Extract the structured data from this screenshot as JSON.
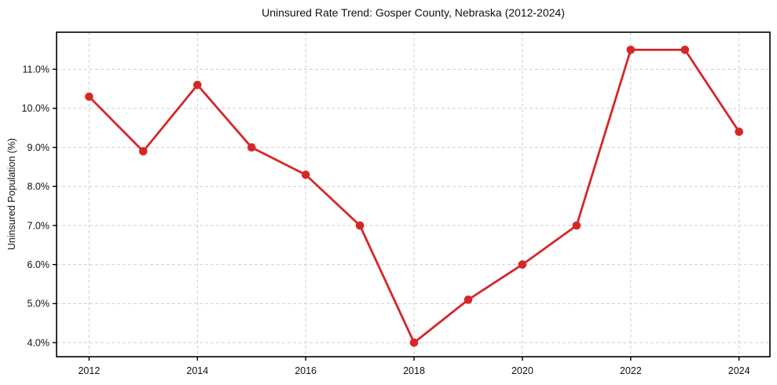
{
  "chart_data": {
    "type": "line",
    "title": "Uninsured Rate Trend: Gosper County, Nebraska (2012-2024)",
    "xlabel": "",
    "ylabel": "Uninsured Population (%)",
    "x": [
      2012,
      2013,
      2014,
      2015,
      2016,
      2017,
      2018,
      2019,
      2020,
      2021,
      2022,
      2023,
      2024
    ],
    "values": [
      10.3,
      8.9,
      10.6,
      9.0,
      8.3,
      7.0,
      4.0,
      5.1,
      6.0,
      7.0,
      11.5,
      11.5,
      9.4
    ],
    "unit": "%",
    "x_ticks": [
      2012,
      2014,
      2016,
      2018,
      2020,
      2022,
      2024
    ],
    "x_tick_labels": [
      "2012",
      "2014",
      "2016",
      "2018",
      "2020",
      "2022",
      "2024"
    ],
    "y_ticks": [
      4.0,
      5.0,
      6.0,
      7.0,
      8.0,
      9.0,
      10.0,
      11.0
    ],
    "y_tick_labels": [
      "4.0%",
      "5.0%",
      "6.0%",
      "7.0%",
      "8.0%",
      "9.0%",
      "10.0%",
      "11.0%"
    ],
    "xlim": [
      2011.4,
      2024.57
    ],
    "ylim": [
      3.64,
      11.95
    ],
    "grid": true,
    "legend_position": "none",
    "colors": {
      "line": "#d62728",
      "marker": "#d62728",
      "grid": "#cfcfcf",
      "axis": "#000000",
      "text": "#111111",
      "background": "#ffffff"
    }
  }
}
